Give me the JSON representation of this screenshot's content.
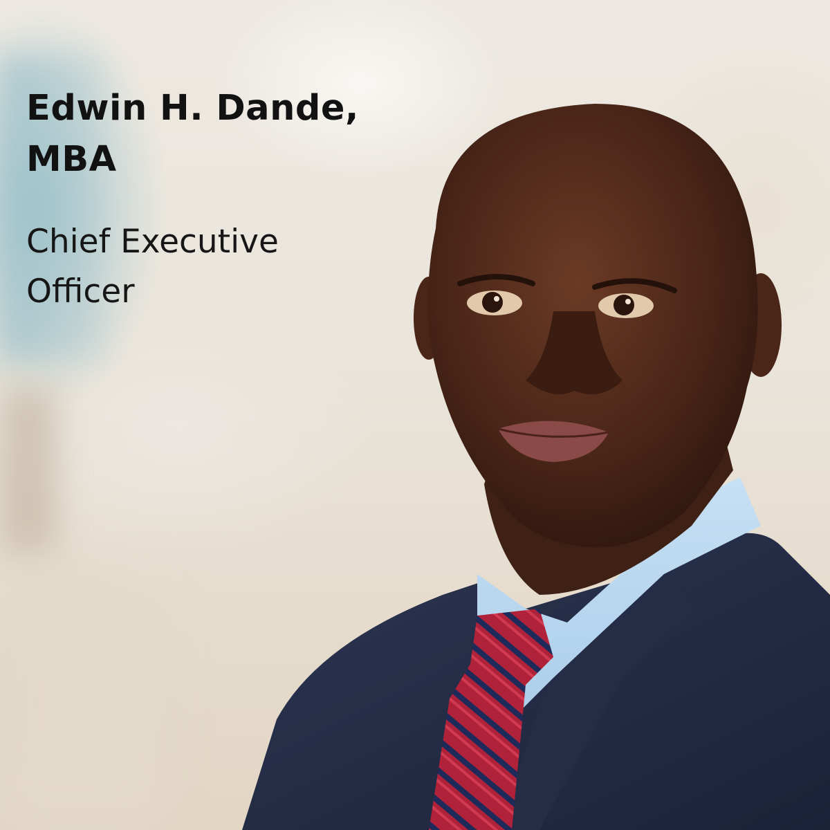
{
  "profile": {
    "name": "Edwin H. Dande, MBA",
    "title": "Chief Executive Officer"
  }
}
